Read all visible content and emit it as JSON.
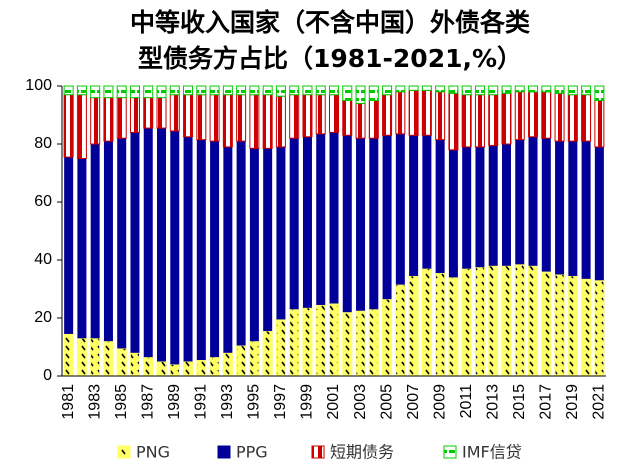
{
  "chart_data": {
    "type": "stacked-bar",
    "title": [
      "中等收入国家（不含中国）外债各类",
      "型债务方占比（1981-2021,%）"
    ],
    "categories": [
      "1981",
      null,
      "1983",
      null,
      "1985",
      null,
      "1987",
      null,
      "1989",
      null,
      "1991",
      null,
      "1993",
      null,
      "1995",
      null,
      "1997",
      null,
      "1999",
      null,
      "2001",
      null,
      "2003",
      null,
      "2005",
      null,
      "2007",
      null,
      "2009",
      null,
      "2011",
      null,
      "2013",
      null,
      "2015",
      null,
      "2017",
      null,
      "2019",
      null,
      "2021"
    ],
    "series": [
      {
        "name": "PNG",
        "color": "#ffff66",
        "values": [
          14.5,
          13,
          13,
          12,
          9.5,
          8,
          6.5,
          5,
          4,
          5,
          5.5,
          6.5,
          8,
          10.5,
          12,
          15.5,
          19.5,
          23,
          23.5,
          24.5,
          25,
          22,
          22.5,
          23,
          26.5,
          31.5,
          34.5,
          37,
          35.5,
          34,
          37,
          37.5,
          38,
          38,
          38.5,
          38,
          36,
          35,
          34.5,
          33.5,
          33
        ]
      },
      {
        "name": "PPG",
        "color": "#000099",
        "values": [
          61,
          62,
          67,
          69,
          72.5,
          76,
          79,
          80.5,
          80.5,
          77.5,
          76,
          74.5,
          71,
          70.5,
          66.5,
          63,
          59.5,
          59,
          59,
          59,
          59,
          61,
          59.5,
          59,
          56.5,
          52,
          48.5,
          46,
          46,
          44,
          42,
          41.5,
          41.5,
          42,
          43,
          44.5,
          46,
          46,
          46.5,
          47.5,
          46
        ]
      },
      {
        "name": "短期债务",
        "color": "#cc0000",
        "values": [
          21.5,
          22,
          16,
          15,
          14,
          12,
          10.5,
          10.5,
          12.5,
          14.5,
          15.5,
          16,
          18,
          16,
          18.5,
          18.5,
          17.5,
          15,
          14.5,
          13.5,
          13,
          12,
          12,
          13,
          14,
          14.5,
          15.5,
          15.5,
          16.5,
          19.5,
          18,
          18,
          17.5,
          17.5,
          16.5,
          15.5,
          16,
          16.5,
          16,
          16,
          16
        ]
      },
      {
        "name": "IMF信贷",
        "color": "#00cc00",
        "values": [
          3,
          3,
          4,
          4,
          4,
          4,
          4,
          4,
          3,
          3,
          3,
          3,
          3,
          3,
          3,
          3,
          3.5,
          3,
          3,
          3,
          3,
          5,
          6,
          5,
          3,
          2,
          1.5,
          1.5,
          2,
          2.5,
          3,
          3,
          3,
          2.5,
          2,
          2,
          2,
          2.5,
          3,
          3,
          5
        ]
      }
    ],
    "ylim": [
      0,
      100
    ],
    "yticks": [
      0,
      20,
      40,
      60,
      80,
      100
    ]
  }
}
